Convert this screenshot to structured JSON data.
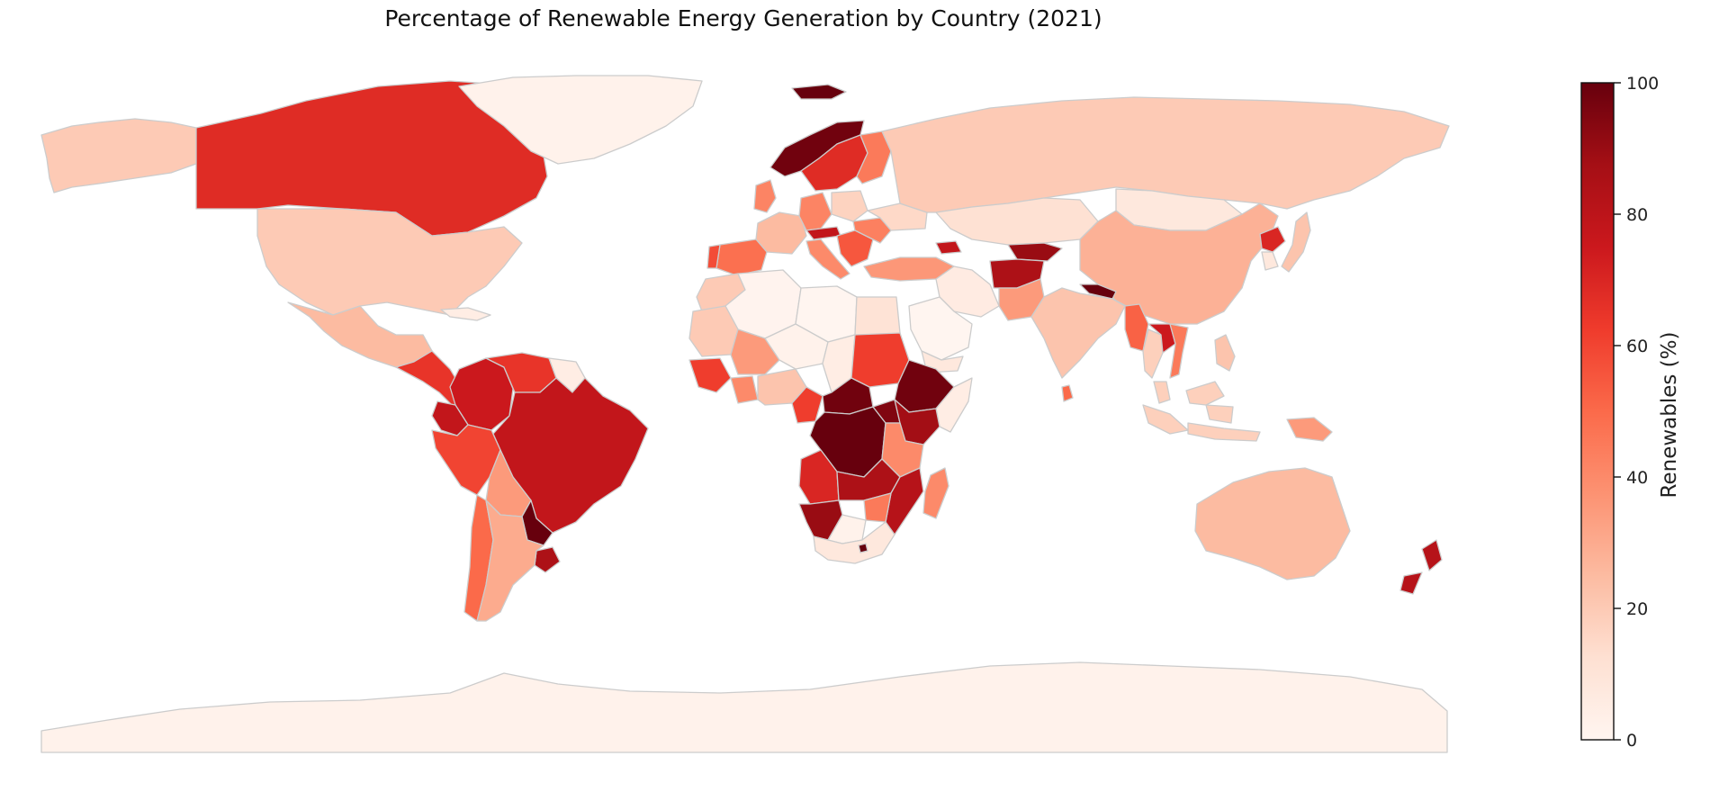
{
  "title": "Percentage of Renewable Energy Generation by Country (2021)",
  "colorbar": {
    "label": "Renewables (%)",
    "min": 0,
    "max": 100,
    "ticks": [
      0,
      20,
      40,
      60,
      80,
      100
    ],
    "colormap": "Reds",
    "stops": [
      "#fff5f0",
      "#fee0d2",
      "#fcbba1",
      "#fc9272",
      "#fb6a4a",
      "#ef3b2c",
      "#cb181d",
      "#a50f15",
      "#67000d"
    ]
  },
  "colors": {
    "border": "#cccccc",
    "background": "#ffffff"
  },
  "chart_data": {
    "type": "choropleth",
    "title": "Percentage of Renewable Energy Generation by Country (2021)",
    "value_label": "Renewables (%)",
    "range": [
      0,
      100
    ],
    "regions": [
      {
        "name": "Canada",
        "value": 68
      },
      {
        "name": "United States",
        "value": 20
      },
      {
        "name": "Alaska (US)",
        "value": 20
      },
      {
        "name": "Greenland",
        "value": 2
      },
      {
        "name": "Mexico",
        "value": 25
      },
      {
        "name": "Central America",
        "value": 65
      },
      {
        "name": "Cuba",
        "value": 5
      },
      {
        "name": "Colombia",
        "value": 75
      },
      {
        "name": "Venezuela",
        "value": 65
      },
      {
        "name": "Guyana",
        "value": 5
      },
      {
        "name": "Ecuador",
        "value": 78
      },
      {
        "name": "Peru",
        "value": 60
      },
      {
        "name": "Brazil",
        "value": 78
      },
      {
        "name": "Bolivia",
        "value": 35
      },
      {
        "name": "Paraguay",
        "value": 100
      },
      {
        "name": "Uruguay",
        "value": 85
      },
      {
        "name": "Argentina",
        "value": 30
      },
      {
        "name": "Chile",
        "value": 50
      },
      {
        "name": "Iceland",
        "value": 100
      },
      {
        "name": "Norway",
        "value": 98
      },
      {
        "name": "Sweden",
        "value": 68
      },
      {
        "name": "Finland",
        "value": 45
      },
      {
        "name": "United Kingdom",
        "value": 42
      },
      {
        "name": "France",
        "value": 25
      },
      {
        "name": "Spain",
        "value": 48
      },
      {
        "name": "Portugal",
        "value": 58
      },
      {
        "name": "Germany",
        "value": 42
      },
      {
        "name": "Poland",
        "value": 17
      },
      {
        "name": "Italy",
        "value": 40
      },
      {
        "name": "Austria",
        "value": 78
      },
      {
        "name": "Balkans",
        "value": 55
      },
      {
        "name": "Romania",
        "value": 43
      },
      {
        "name": "Ukraine",
        "value": 15
      },
      {
        "name": "Turkey",
        "value": 36
      },
      {
        "name": "Russia",
        "value": 20
      },
      {
        "name": "Kazakhstan",
        "value": 12
      },
      {
        "name": "Georgia",
        "value": 78
      },
      {
        "name": "Kyrgyzstan",
        "value": 90
      },
      {
        "name": "Iran",
        "value": 6
      },
      {
        "name": "Afghanistan",
        "value": 85
      },
      {
        "name": "Pakistan",
        "value": 35
      },
      {
        "name": "India",
        "value": 22
      },
      {
        "name": "Nepal",
        "value": 100
      },
      {
        "name": "Sri Lanka",
        "value": 50
      },
      {
        "name": "Mongolia",
        "value": 8
      },
      {
        "name": "China",
        "value": 28
      },
      {
        "name": "North Korea",
        "value": 70
      },
      {
        "name": "South Korea",
        "value": 8
      },
      {
        "name": "Japan",
        "value": 22
      },
      {
        "name": "Myanmar",
        "value": 52
      },
      {
        "name": "Thailand",
        "value": 18
      },
      {
        "name": "Laos",
        "value": 75
      },
      {
        "name": "Vietnam",
        "value": 45
      },
      {
        "name": "Philippines",
        "value": 22
      },
      {
        "name": "Malaysia",
        "value": 18
      },
      {
        "name": "Indonesia",
        "value": 18
      },
      {
        "name": "Papua New Guinea",
        "value": 35
      },
      {
        "name": "Australia",
        "value": 25
      },
      {
        "name": "New Zealand",
        "value": 82
      },
      {
        "name": "Morocco",
        "value": 20
      },
      {
        "name": "Algeria",
        "value": 1
      },
      {
        "name": "Libya",
        "value": 0
      },
      {
        "name": "Egypt",
        "value": 11
      },
      {
        "name": "Mauritania",
        "value": 20
      },
      {
        "name": "Mali",
        "value": 35
      },
      {
        "name": "Niger",
        "value": 2
      },
      {
        "name": "Chad",
        "value": 5
      },
      {
        "name": "Sudan",
        "value": 62
      },
      {
        "name": "Saudi Arabia",
        "value": 0
      },
      {
        "name": "Yemen",
        "value": 8
      },
      {
        "name": "Ethiopia",
        "value": 98
      },
      {
        "name": "Somalia",
        "value": 5
      },
      {
        "name": "Kenya",
        "value": 88
      },
      {
        "name": "Guinea",
        "value": 62
      },
      {
        "name": "Nigeria",
        "value": 22
      },
      {
        "name": "Ghana",
        "value": 40
      },
      {
        "name": "Cameroon",
        "value": 62
      },
      {
        "name": "Central African Republic",
        "value": 98
      },
      {
        "name": "DR Congo",
        "value": 100
      },
      {
        "name": "Uganda",
        "value": 95
      },
      {
        "name": "Tanzania",
        "value": 40
      },
      {
        "name": "Angola",
        "value": 70
      },
      {
        "name": "Zambia",
        "value": 85
      },
      {
        "name": "Mozambique",
        "value": 82
      },
      {
        "name": "Zimbabwe",
        "value": 45
      },
      {
        "name": "Namibia",
        "value": 90
      },
      {
        "name": "Botswana",
        "value": 2
      },
      {
        "name": "South Africa",
        "value": 8
      },
      {
        "name": "Lesotho",
        "value": 100
      },
      {
        "name": "Madagascar",
        "value": 40
      },
      {
        "name": "Antarctica",
        "value": 2
      }
    ]
  }
}
